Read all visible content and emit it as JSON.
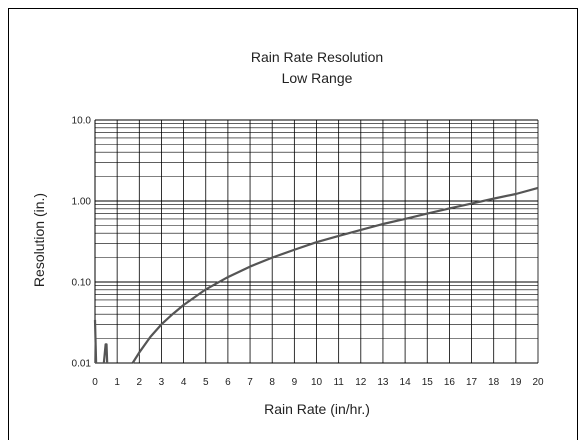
{
  "chart_data": {
    "type": "line",
    "title": "Rain Rate Resolution",
    "subtitle": "Low Range",
    "xlabel": "Rain Rate (in/hr.)",
    "ylabel": "Resolution (in.)",
    "xlim": [
      0,
      20
    ],
    "ylim": [
      0.01,
      10
    ],
    "yscale": "log",
    "grid": true,
    "x_ticks": [
      "0",
      "1",
      "2",
      "3",
      "4",
      "5",
      "6",
      "7",
      "8",
      "9",
      "10",
      "11",
      "12",
      "13",
      "14",
      "15",
      "16",
      "17",
      "18",
      "19",
      "20"
    ],
    "y_ticks": [
      {
        "value": 0.01,
        "label": "0.01"
      },
      {
        "value": 0.1,
        "label": "0.10"
      },
      {
        "value": 1,
        "label": "1.00"
      },
      {
        "value": 10,
        "label": "10.0"
      }
    ],
    "series": [
      {
        "color": "#555555",
        "points": [
          [
            1.7,
            0.01
          ],
          [
            2.0,
            0.0135
          ],
          [
            2.5,
            0.021
          ],
          [
            3.0,
            0.03
          ],
          [
            3.5,
            0.04
          ],
          [
            4.0,
            0.052
          ],
          [
            5.0,
            0.081
          ],
          [
            6.0,
            0.115
          ],
          [
            7.0,
            0.155
          ],
          [
            8.0,
            0.2
          ],
          [
            9.0,
            0.25
          ],
          [
            10.0,
            0.31
          ],
          [
            11.0,
            0.37
          ],
          [
            12.0,
            0.44
          ],
          [
            13.0,
            0.52
          ],
          [
            14.0,
            0.6
          ],
          [
            15.0,
            0.7
          ],
          [
            16.0,
            0.81
          ],
          [
            17.0,
            0.93
          ],
          [
            18.0,
            1.07
          ],
          [
            19.0,
            1.22
          ],
          [
            20.0,
            1.45
          ]
        ]
      },
      {
        "color": "#555555",
        "points": [
          [
            0.0,
            0.034
          ],
          [
            0.05,
            0.01
          ]
        ]
      },
      {
        "color": "#555555",
        "points": [
          [
            0.4,
            0.01
          ],
          [
            0.48,
            0.017
          ],
          [
            0.52,
            0.017
          ],
          [
            0.55,
            0.01
          ]
        ]
      }
    ]
  }
}
